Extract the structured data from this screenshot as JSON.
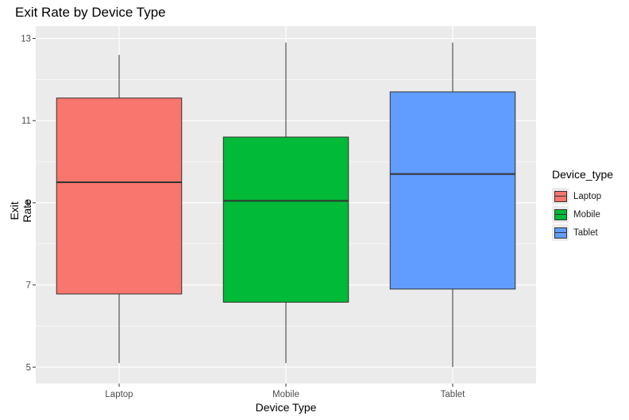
{
  "chart_data": {
    "type": "boxplot",
    "title": "Exit Rate by Device Type",
    "xlabel": "Device Type",
    "ylabel": "Exit Rate",
    "categories": [
      "Laptop",
      "Mobile",
      "Tablet"
    ],
    "ylim": [
      4.6,
      13.3
    ],
    "yticks": [
      5,
      7,
      9,
      11,
      13
    ],
    "grid": true,
    "legend": {
      "title": "Device_type",
      "placement": "right"
    },
    "boxes": [
      {
        "category": "Laptop",
        "min": 5.1,
        "q1": 6.78,
        "median": 9.5,
        "q3": 11.55,
        "max": 12.6,
        "color": "#F8766D"
      },
      {
        "category": "Mobile",
        "min": 5.1,
        "q1": 6.58,
        "median": 9.05,
        "q3": 10.6,
        "max": 12.9,
        "color": "#00BA38"
      },
      {
        "category": "Tablet",
        "min": 5.0,
        "q1": 6.9,
        "median": 9.7,
        "q3": 11.7,
        "max": 12.9,
        "color": "#619CFF"
      }
    ]
  }
}
